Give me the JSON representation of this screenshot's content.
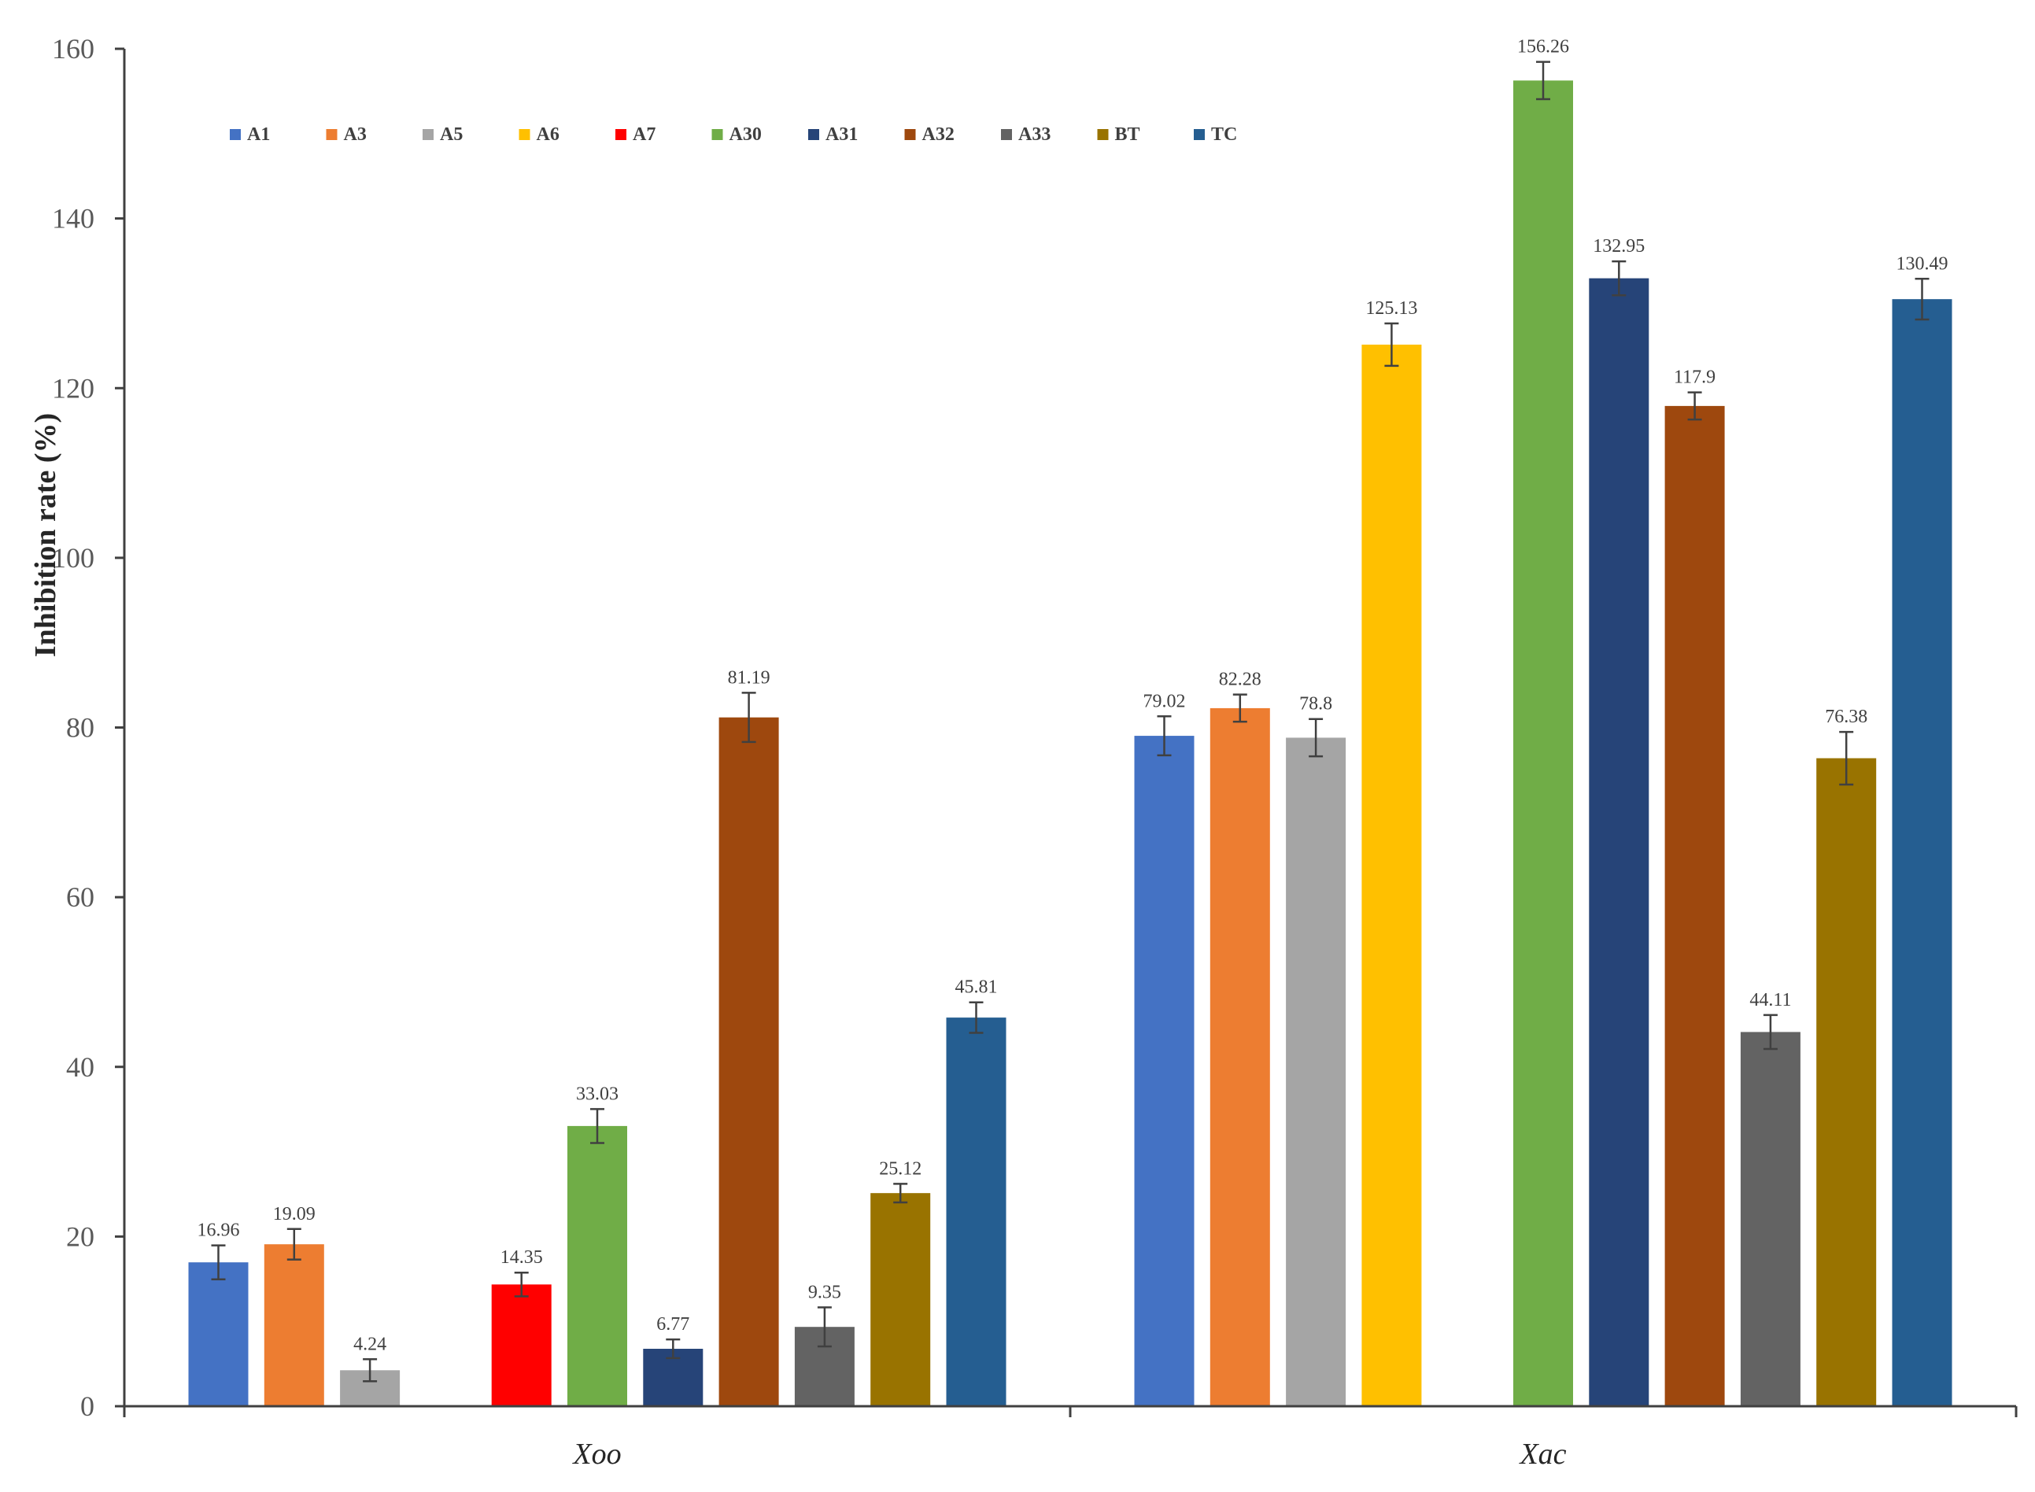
{
  "chart_data": {
    "type": "bar",
    "title": "",
    "xlabel": "",
    "ylabel": "Inhibition rate (%)",
    "ylim": [
      0,
      160
    ],
    "yticks": [
      0,
      20,
      40,
      60,
      80,
      100,
      120,
      140,
      160
    ],
    "grid": false,
    "legend_position": "top",
    "categories": [
      "Xoo",
      "Xac"
    ],
    "series": [
      {
        "name": "A1",
        "color": "#4472C4",
        "values": [
          16.96,
          79.02
        ],
        "errors": [
          2.0,
          2.3
        ]
      },
      {
        "name": "A3",
        "color": "#ED7D31",
        "values": [
          19.09,
          82.28
        ],
        "errors": [
          1.8,
          1.6
        ]
      },
      {
        "name": "A5",
        "color": "#A5A5A5",
        "values": [
          4.24,
          78.8
        ],
        "errors": [
          1.3,
          2.2
        ]
      },
      {
        "name": "A6",
        "color": "#FFC000",
        "values": [
          null,
          125.13
        ],
        "errors": [
          null,
          2.5
        ]
      },
      {
        "name": "A7",
        "color": "#FF0000",
        "values": [
          14.35,
          null
        ],
        "errors": [
          1.4,
          null
        ]
      },
      {
        "name": "A30",
        "color": "#70AD47",
        "values": [
          33.03,
          156.26
        ],
        "errors": [
          2.0,
          2.2
        ]
      },
      {
        "name": "A31",
        "color": "#264478",
        "values": [
          6.77,
          132.95
        ],
        "errors": [
          1.1,
          2.0
        ]
      },
      {
        "name": "A32",
        "color": "#9E480E",
        "values": [
          81.19,
          117.9
        ],
        "errors": [
          2.9,
          1.6
        ]
      },
      {
        "name": "A33",
        "color": "#636363",
        "values": [
          9.35,
          44.11
        ],
        "errors": [
          2.3,
          2.0
        ]
      },
      {
        "name": "BT",
        "color": "#997300",
        "values": [
          25.12,
          76.38
        ],
        "errors": [
          1.1,
          3.1
        ]
      },
      {
        "name": "TC",
        "color": "#255E91",
        "values": [
          45.81,
          130.49
        ],
        "errors": [
          1.8,
          2.4
        ]
      }
    ],
    "data_labels": {
      "Xoo": [
        "16.96",
        "19.09",
        "4.24",
        "",
        "14.35",
        "33.03",
        "6.77",
        "81.19",
        "9.35",
        "25.12",
        "45.81"
      ],
      "Xac": [
        "79.02",
        "82.28",
        "78.8",
        "125.13",
        "",
        "156.26",
        "132.95",
        "117.9",
        "44.11",
        "76.38",
        "130.49"
      ]
    }
  }
}
